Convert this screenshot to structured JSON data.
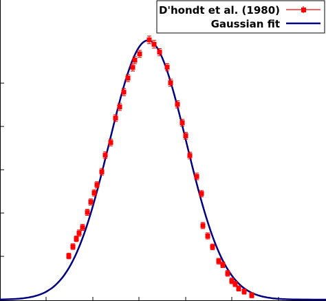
{
  "chart_data": {
    "type": "scatter",
    "xlim": [
      0,
      474
    ],
    "ylim": [
      0,
      1
    ],
    "x_ticks": [
      67,
      135,
      202,
      270,
      337,
      405
    ],
    "y_ticks": [
      0,
      0.1667,
      0.3333,
      0.5,
      0.6667,
      0.8333
    ],
    "grid": false,
    "legend_position": "top-right",
    "legend": [
      {
        "label": "D'hondt et al. (1980)",
        "color": "#ff0000",
        "marker": "square",
        "line": true
      },
      {
        "label": "Gaussian fit",
        "color": "#000080",
        "marker": "none",
        "line": true
      }
    ],
    "series": [
      {
        "name": "D'hondt et al. (1980)",
        "kind": "points_with_errorbars",
        "color": "#ff0000",
        "x": [
          100,
          106,
          111,
          115,
          120,
          127,
          132,
          137,
          141,
          148,
          153,
          161,
          168,
          174,
          180,
          186,
          193,
          196,
          203,
          217,
          224,
          232,
          243,
          248,
          258,
          265,
          270,
          276,
          286,
          293,
          295,
          302,
          309,
          318,
          324,
          331,
          337,
          342,
          347,
          355,
          366
        ],
        "y": [
          0.168,
          0.204,
          0.234,
          0.256,
          0.278,
          0.336,
          0.376,
          0.411,
          0.442,
          0.492,
          0.556,
          0.605,
          0.699,
          0.742,
          0.799,
          0.853,
          0.894,
          0.922,
          0.946,
          1.0,
          0.983,
          0.953,
          0.895,
          0.835,
          0.752,
          0.681,
          0.631,
          0.555,
          0.474,
          0.408,
          0.285,
          0.245,
          0.203,
          0.148,
          0.134,
          0.101,
          0.072,
          0.06,
          0.043,
          0.031,
          0.017
        ],
        "err": [
          0.011,
          0.011,
          0.011,
          0.012,
          0.012,
          0.012,
          0.012,
          0.012,
          0.012,
          0.013,
          0.013,
          0.013,
          0.013,
          0.014,
          0.014,
          0.014,
          0.014,
          0.014,
          0.014,
          0.015,
          0.015,
          0.014,
          0.014,
          0.014,
          0.014,
          0.013,
          0.013,
          0.013,
          0.013,
          0.012,
          0.012,
          0.012,
          0.011,
          0.011,
          0.011,
          0.011,
          0.011,
          0.01,
          0.01,
          0.01,
          0.01
        ]
      },
      {
        "name": "Gaussian fit",
        "kind": "curve",
        "color": "#000080",
        "mean": 215,
        "sigma": 56,
        "amplitude": 0.998
      }
    ]
  }
}
